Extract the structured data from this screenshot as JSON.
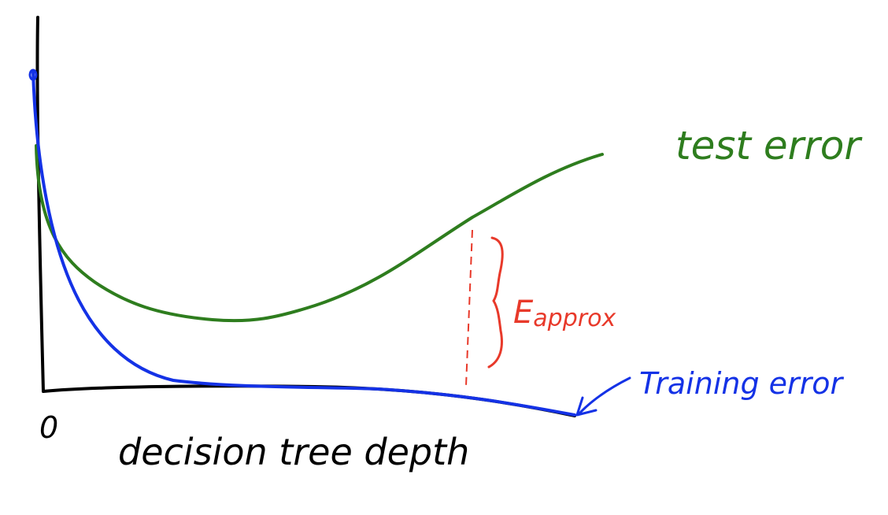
{
  "diagram": {
    "origin_label": "0",
    "x_axis_label": "decision tree depth",
    "test_error_label": "test error",
    "training_error_label": "Training error",
    "gap_label": "E",
    "gap_label_subscript": "approx",
    "colors": {
      "axes": "#000000",
      "test_error": "#2e7d1e",
      "training_error": "#1432e6",
      "gap": "#e8392a"
    }
  }
}
